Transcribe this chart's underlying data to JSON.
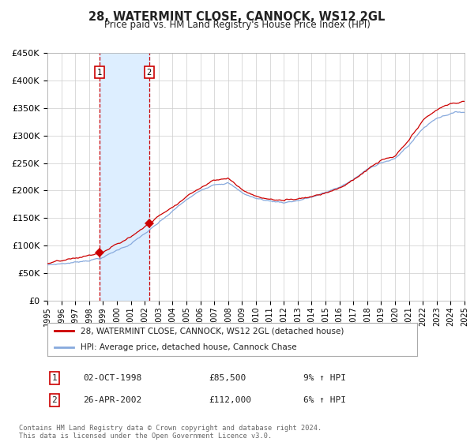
{
  "title": "28, WATERMINT CLOSE, CANNOCK, WS12 2GL",
  "subtitle": "Price paid vs. HM Land Registry's House Price Index (HPI)",
  "red_label": "28, WATERMINT CLOSE, CANNOCK, WS12 2GL (detached house)",
  "blue_label": "HPI: Average price, detached house, Cannock Chase",
  "transaction1_date": "02-OCT-1998",
  "transaction1_price": 85500,
  "transaction1_hpi": "9% ↑ HPI",
  "transaction1_year": 1998.75,
  "transaction2_date": "26-APR-2002",
  "transaction2_price": 112000,
  "transaction2_hpi": "6% ↑ HPI",
  "transaction2_year": 2002.32,
  "xmin": 1995,
  "xmax": 2025,
  "ymin": 0,
  "ymax": 450000,
  "yticks": [
    0,
    50000,
    100000,
    150000,
    200000,
    250000,
    300000,
    350000,
    400000,
    450000
  ],
  "background_color": "#ffffff",
  "grid_color": "#cccccc",
  "red_line_color": "#cc0000",
  "blue_line_color": "#88aadd",
  "shade_color": "#ddeeff",
  "vline_color": "#cc0000",
  "marker_color": "#cc0000",
  "footnote": "Contains HM Land Registry data © Crown copyright and database right 2024.\nThis data is licensed under the Open Government Licence v3.0."
}
